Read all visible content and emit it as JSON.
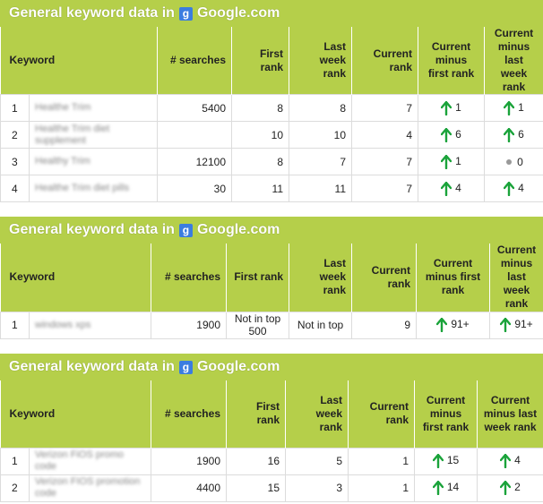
{
  "sections": [
    {
      "title_prefix": "General keyword data in",
      "title_suffix": "Google.com",
      "headers": [
        "Keyword",
        "# searches",
        "First rank",
        "Last week rank",
        "Current rank",
        "Current minus first rank",
        "Current minus last week rank"
      ],
      "rows": [
        [
          "1",
          "Healthe Trim",
          "5400",
          "8",
          "8",
          "7",
          "1",
          "1"
        ],
        [
          "2",
          "Healthe Trim diet supplement",
          "",
          "10",
          "10",
          "4",
          "6",
          "6"
        ],
        [
          "3",
          "Healthy Trim",
          "12100",
          "8",
          "7",
          "7",
          "1",
          "0"
        ],
        [
          "4",
          "Healthe Trim diet pills",
          "30",
          "11",
          "11",
          "7",
          "4",
          "4"
        ]
      ]
    },
    {
      "title_prefix": "General keyword data in",
      "title_suffix": "Google.com",
      "headers": [
        "Keyword",
        "# searches",
        "First rank",
        "Last week rank",
        "Current rank",
        "Current minus first rank",
        "Current minus last week rank"
      ],
      "rows": [
        [
          "1",
          "windows xps",
          "1900",
          "Not in top 500",
          "Not in top",
          "9",
          "91+",
          "91+"
        ]
      ]
    },
    {
      "title_prefix": "General keyword data in",
      "title_suffix": "Google.com",
      "headers": [
        "Keyword",
        "# searches",
        "First rank",
        "Last week rank",
        "Current rank",
        "Current minus first rank",
        "Current minus last week rank"
      ],
      "rows": [
        [
          "1",
          "Verizon FiOS promo code",
          "1900",
          "16",
          "5",
          "1",
          "15",
          "4"
        ],
        [
          "2",
          "Verizon FIOS promotion code",
          "4400",
          "15",
          "3",
          "1",
          "14",
          "2"
        ]
      ]
    }
  ]
}
